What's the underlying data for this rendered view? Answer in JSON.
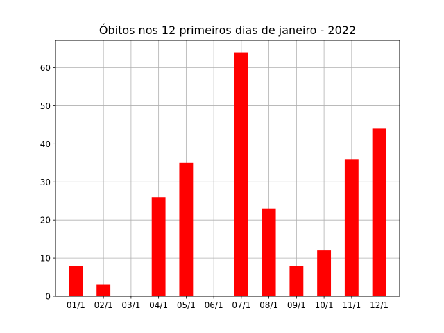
{
  "chart_data": {
    "type": "bar",
    "title": "Óbitos nos 12 primeiros dias de janeiro - 2022",
    "xlabel": "",
    "ylabel": "",
    "categories": [
      "01/1",
      "02/1",
      "03/1",
      "04/1",
      "05/1",
      "06/1",
      "07/1",
      "08/1",
      "09/1",
      "10/1",
      "11/1",
      "12/1"
    ],
    "values": [
      8,
      3,
      0,
      26,
      35,
      0,
      64,
      23,
      8,
      12,
      36,
      44
    ],
    "ylim": [
      0,
      67.2
    ],
    "yticks": [
      0,
      10,
      20,
      30,
      40,
      50,
      60
    ],
    "grid": true,
    "bar_color": "#ff0000",
    "grid_color": "#b0b0b0"
  }
}
